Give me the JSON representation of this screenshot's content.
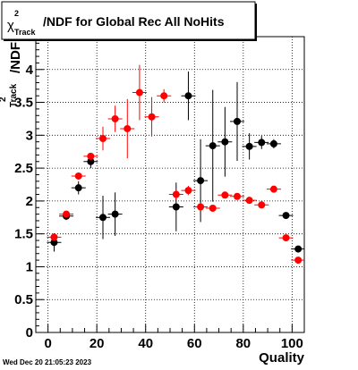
{
  "chart_data": {
    "type": "scatter",
    "title": "/NDF for Global Rec All NoHits",
    "title_symbol": "χ",
    "title_sup": "2",
    "title_sub": "Track",
    "ylabel": "/NDF",
    "ylabel_sup": "2",
    "ylabel_sub": "Track",
    "xlabel": "Quality",
    "xlim": [
      -5,
      105
    ],
    "ylim": [
      0,
      4.5
    ],
    "xticks": [
      0,
      20,
      40,
      60,
      80,
      100
    ],
    "yticks": [
      0,
      0.5,
      1,
      1.5,
      2,
      2.5,
      3,
      3.5,
      4
    ],
    "grid": true,
    "series": [
      {
        "color": "#000000",
        "points": [
          {
            "x": 2.5,
            "y": 1.37,
            "err": 0.14
          },
          {
            "x": 7.5,
            "y": 1.77,
            "err": 0.06
          },
          {
            "x": 12.5,
            "y": 2.2,
            "err": 0.1
          },
          {
            "x": 17.5,
            "y": 2.6,
            "err": 0.1
          },
          {
            "x": 22.5,
            "y": 1.75,
            "err": 0.33
          },
          {
            "x": 27.5,
            "y": 1.8,
            "err": 0.33
          },
          {
            "x": 52.5,
            "y": 1.91,
            "err": 0.37
          },
          {
            "x": 57.5,
            "y": 3.6,
            "err": 0.37
          },
          {
            "x": 62.5,
            "y": 2.31,
            "err": 0.63
          },
          {
            "x": 67.5,
            "y": 2.84,
            "err": 0.85
          },
          {
            "x": 72.5,
            "y": 2.9,
            "err": 0.53
          },
          {
            "x": 77.5,
            "y": 3.21,
            "err": 0.6
          },
          {
            "x": 82.5,
            "y": 2.83,
            "err": 0.2
          },
          {
            "x": 87.5,
            "y": 2.89,
            "err": 0.1
          },
          {
            "x": 92.5,
            "y": 2.87,
            "err": 0.07
          },
          {
            "x": 97.5,
            "y": 1.78,
            "err": 0.03
          },
          {
            "x": 102.5,
            "y": 1.27,
            "err": 0.02
          }
        ]
      },
      {
        "color": "#ff0000",
        "points": [
          {
            "x": 2.5,
            "y": 1.45,
            "err": 0.05
          },
          {
            "x": 7.5,
            "y": 1.8,
            "err": 0.03
          },
          {
            "x": 12.5,
            "y": 2.38,
            "err": 0.03
          },
          {
            "x": 17.5,
            "y": 2.68,
            "err": 0.05
          },
          {
            "x": 22.5,
            "y": 2.95,
            "err": 0.18
          },
          {
            "x": 27.5,
            "y": 3.25,
            "err": 0.2
          },
          {
            "x": 32.5,
            "y": 3.1,
            "err": 0.45
          },
          {
            "x": 37.5,
            "y": 3.65,
            "err": 0.42
          },
          {
            "x": 42.5,
            "y": 3.28,
            "err": 0.3
          },
          {
            "x": 47.5,
            "y": 3.6,
            "err": 0.1
          },
          {
            "x": 52.5,
            "y": 2.1,
            "err": 0.07
          },
          {
            "x": 57.5,
            "y": 2.16,
            "err": 0.07
          },
          {
            "x": 62.5,
            "y": 1.91,
            "err": 0.05
          },
          {
            "x": 67.5,
            "y": 1.89,
            "err": 0.04
          },
          {
            "x": 72.5,
            "y": 2.09,
            "err": 0.05
          },
          {
            "x": 77.5,
            "y": 2.07,
            "err": 0.04
          },
          {
            "x": 82.5,
            "y": 2.01,
            "err": 0.03
          },
          {
            "x": 87.5,
            "y": 1.94,
            "err": 0.03
          },
          {
            "x": 92.5,
            "y": 2.18,
            "err": 0.02
          },
          {
            "x": 97.5,
            "y": 1.44,
            "err": 0.02
          },
          {
            "x": 102.5,
            "y": 1.1,
            "err": 0.02
          }
        ]
      }
    ]
  },
  "timestamp": "Wed Dec 20 21:05:23 2023"
}
